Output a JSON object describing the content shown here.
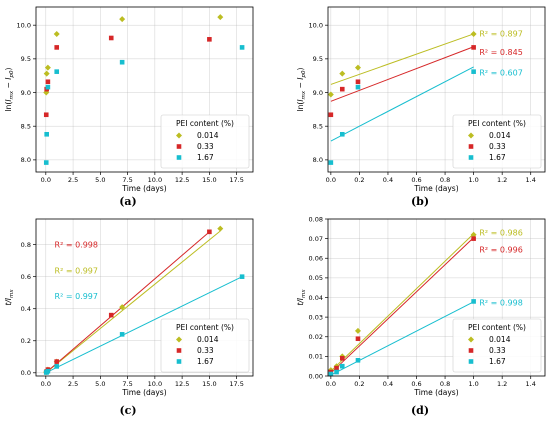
{
  "colors": {
    "s0014": "#bcbd22",
    "s033": "#d62728",
    "s167": "#17becf"
  },
  "legend": {
    "title": "PEI content (%)",
    "entries": [
      "0.014",
      "0.33",
      "1.67"
    ]
  },
  "chart_data": [
    {
      "panel": "(a)",
      "type": "scatter",
      "xlabel": "Time (days)",
      "ylabel": "ln(I_mx − I_p0)",
      "xlim": [
        -0.9,
        19
      ],
      "ylim": [
        7.82,
        10.27
      ],
      "xticks": [
        0.0,
        2.5,
        5.0,
        7.5,
        10.0,
        12.5,
        15.0,
        17.5
      ],
      "xticklabels": [
        "0.0",
        "2.5",
        "5.0",
        "7.5",
        "10.0",
        "12.5",
        "15.0",
        "17.5"
      ],
      "yticks": [
        8.0,
        8.5,
        9.0,
        9.5,
        10.0
      ],
      "yticklabels": [
        "8.0",
        "8.5",
        "9.0",
        "9.5",
        "10.0"
      ],
      "grid": true,
      "legend_position": "lower-right",
      "series": [
        {
          "name": "0.014",
          "marker": "diamond",
          "x": [
            0.04,
            0.08,
            0.19,
            1.0,
            7.0,
            16.0
          ],
          "y": [
            9.0,
            9.28,
            9.37,
            9.87,
            10.09,
            10.12
          ]
        },
        {
          "name": "0.33",
          "marker": "square",
          "x": [
            0.04,
            0.08,
            0.19,
            1.0,
            6.0,
            15.0
          ],
          "y": [
            8.67,
            9.05,
            9.16,
            9.67,
            9.81,
            9.79
          ]
        },
        {
          "name": "1.67",
          "marker": "square",
          "x": [
            0.04,
            0.08,
            0.19,
            1.0,
            7.0,
            18.0
          ],
          "y": [
            7.96,
            8.38,
            9.08,
            9.31,
            9.45,
            9.67
          ]
        }
      ],
      "fits": [],
      "r2": []
    },
    {
      "panel": "(b)",
      "type": "scatter",
      "xlabel": "Time (days)",
      "ylabel": "ln(I_mx − I_p0)",
      "xlim": [
        -0.02,
        1.5
      ],
      "ylim": [
        7.82,
        10.27
      ],
      "xticks": [
        0.0,
        0.2,
        0.4,
        0.6,
        0.8,
        1.0,
        1.2,
        1.4
      ],
      "xticklabels": [
        "0.0",
        "0.2",
        "0.4",
        "0.6",
        "0.8",
        "1.0",
        "1.2",
        "1.4"
      ],
      "yticks": [
        8.0,
        8.5,
        9.0,
        9.5,
        10.0
      ],
      "yticklabels": [
        "8.0",
        "8.5",
        "9.0",
        "9.5",
        "10.0"
      ],
      "grid": true,
      "legend_position": "lower-right",
      "series": [
        {
          "name": "0.014",
          "marker": "diamond",
          "x": [
            0.0,
            0.08,
            0.19,
            1.0
          ],
          "y": [
            8.97,
            9.28,
            9.37,
            9.87
          ]
        },
        {
          "name": "0.33",
          "marker": "square",
          "x": [
            0.0,
            0.08,
            0.19,
            1.0
          ],
          "y": [
            8.67,
            9.05,
            9.16,
            9.67
          ]
        },
        {
          "name": "1.67",
          "marker": "square",
          "x": [
            0.0,
            0.08,
            0.19,
            1.0
          ],
          "y": [
            7.96,
            8.38,
            9.08,
            9.31
          ]
        }
      ],
      "fits": [
        {
          "series": "0.014",
          "x": [
            0.0,
            1.0
          ],
          "y": [
            9.12,
            9.87
          ]
        },
        {
          "series": "0.33",
          "x": [
            0.0,
            1.0
          ],
          "y": [
            8.87,
            9.68
          ]
        },
        {
          "series": "1.67",
          "x": [
            0.0,
            1.0
          ],
          "y": [
            8.28,
            9.38
          ]
        }
      ],
      "r2": [
        {
          "series": "0.014",
          "text": "R² = 0.897",
          "x": 1.04,
          "y": 9.88
        },
        {
          "series": "0.33",
          "text": "R² = 0.845",
          "x": 1.04,
          "y": 9.6
        },
        {
          "series": "1.67",
          "text": "R² = 0.607",
          "x": 1.04,
          "y": 9.3
        }
      ]
    },
    {
      "panel": "(c)",
      "type": "scatter",
      "xlabel": "Time (days)",
      "ylabel": "t/I_mx",
      "xlim": [
        -0.9,
        19
      ],
      "ylim": [
        -0.02,
        0.96
      ],
      "xticks": [
        0.0,
        2.5,
        5.0,
        7.5,
        10.0,
        12.5,
        15.0,
        17.5
      ],
      "xticklabels": [
        "0.0",
        "2.5",
        "5.0",
        "7.5",
        "10.0",
        "12.5",
        "15.0",
        "17.5"
      ],
      "yticks": [
        0.0,
        0.2,
        0.4,
        0.6,
        0.8
      ],
      "yticklabels": [
        "0.0",
        "0.2",
        "0.4",
        "0.6",
        "0.8"
      ],
      "grid": true,
      "legend_position": "lower-right",
      "series": [
        {
          "name": "0.014",
          "marker": "diamond",
          "x": [
            0.04,
            0.08,
            0.19,
            1.0,
            7.0,
            16.0
          ],
          "y": [
            0.004,
            0.008,
            0.02,
            0.07,
            0.41,
            0.9
          ]
        },
        {
          "name": "0.33",
          "marker": "square",
          "x": [
            0.04,
            0.08,
            0.19,
            1.0,
            6.0,
            15.0
          ],
          "y": [
            0.004,
            0.008,
            0.02,
            0.07,
            0.36,
            0.88
          ]
        },
        {
          "name": "1.67",
          "marker": "square",
          "x": [
            0.04,
            0.08,
            0.19,
            1.0,
            7.0,
            18.0
          ],
          "y": [
            0.002,
            0.004,
            0.01,
            0.04,
            0.24,
            0.6
          ]
        }
      ],
      "fits": [
        {
          "series": "0.014",
          "x": [
            0.0,
            16.0
          ],
          "y": [
            0.0,
            0.885
          ]
        },
        {
          "series": "0.33",
          "x": [
            0.0,
            15.0
          ],
          "y": [
            0.0,
            0.88
          ]
        },
        {
          "series": "1.67",
          "x": [
            0.0,
            18.0
          ],
          "y": [
            0.0,
            0.6
          ]
        }
      ],
      "r2": [
        {
          "series": "0.33",
          "text": "R² = 0.998",
          "x": 0.8,
          "y": 0.8
        },
        {
          "series": "0.014",
          "text": "R² = 0.997",
          "x": 0.8,
          "y": 0.64
        },
        {
          "series": "1.67",
          "text": "R² = 0.997",
          "x": 0.8,
          "y": 0.48
        }
      ]
    },
    {
      "panel": "(d)",
      "type": "scatter",
      "xlabel": "Time (days)",
      "ylabel": "t/I_mx",
      "xlim": [
        -0.02,
        1.5
      ],
      "ylim": [
        0.0,
        0.08
      ],
      "xticks": [
        0.0,
        0.2,
        0.4,
        0.6,
        0.8,
        1.0,
        1.2,
        1.4
      ],
      "xticklabels": [
        "0.0",
        "0.2",
        "0.4",
        "0.6",
        "0.8",
        "1.0",
        "1.2",
        "1.4"
      ],
      "yticks": [
        0.0,
        0.01,
        0.02,
        0.03,
        0.04,
        0.05,
        0.06,
        0.07,
        0.08
      ],
      "yticklabels": [
        "0.00",
        "0.01",
        "0.02",
        "0.03",
        "0.04",
        "0.05",
        "0.06",
        "0.07",
        "0.08"
      ],
      "grid": true,
      "legend_position": "lower-right",
      "series": [
        {
          "name": "0.014",
          "marker": "diamond",
          "x": [
            0.0,
            0.04,
            0.08,
            0.19,
            1.0
          ],
          "y": [
            0.003,
            0.005,
            0.01,
            0.023,
            0.072
          ]
        },
        {
          "name": "0.33",
          "marker": "square",
          "x": [
            0.0,
            0.04,
            0.08,
            0.19,
            1.0
          ],
          "y": [
            0.002,
            0.004,
            0.009,
            0.019,
            0.07
          ]
        },
        {
          "name": "1.67",
          "marker": "square",
          "x": [
            0.0,
            0.04,
            0.08,
            0.19,
            1.0
          ],
          "y": [
            0.001,
            0.002,
            0.005,
            0.008,
            0.038
          ]
        }
      ],
      "fits": [
        {
          "series": "0.014",
          "x": [
            0.0,
            1.0
          ],
          "y": [
            0.0025,
            0.0725
          ]
        },
        {
          "series": "0.33",
          "x": [
            0.0,
            1.0
          ],
          "y": [
            0.0015,
            0.0705
          ]
        },
        {
          "series": "1.67",
          "x": [
            0.0,
            1.0
          ],
          "y": [
            0.0005,
            0.0378
          ]
        }
      ],
      "r2": [
        {
          "series": "0.014",
          "text": "R² = 0.986",
          "x": 1.04,
          "y": 0.073
        },
        {
          "series": "0.33",
          "text": "R² = 0.996",
          "x": 1.04,
          "y": 0.0645
        },
        {
          "series": "1.67",
          "text": "R² = 0.998",
          "x": 1.04,
          "y": 0.0375
        }
      ]
    }
  ]
}
